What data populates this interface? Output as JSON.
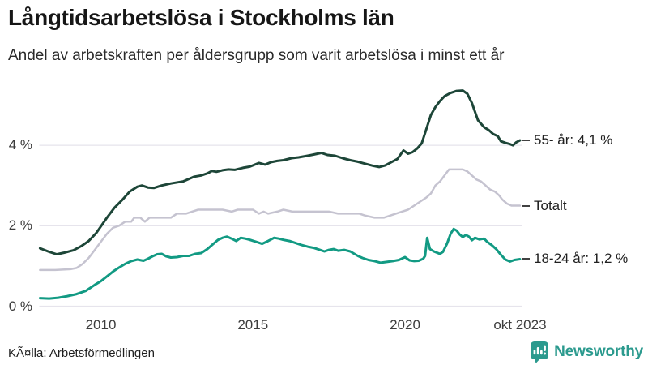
{
  "header": {
    "title": "Långtidsarbetslösa i Stockholms län",
    "subtitle": "Andel av arbetskraften per åldersgrupp som varit arbetslösa i minst ett år"
  },
  "footer": {
    "source": "KÃ¤lla: Arbetsförmedlingen",
    "brand": "Newsworthy"
  },
  "colors": {
    "series_55": "#1d4638",
    "series_total": "#c5c3d0",
    "series_18_24": "#129a83",
    "gridline": "#e6e4ec",
    "brand_teal": "#2b9a8e",
    "text_dark": "#161616"
  },
  "chart_data": {
    "type": "line",
    "title": "Långtidsarbetslösa i Stockholms län",
    "subtitle": "Andel av arbetskraften per åldersgrupp som varit arbetslösa i minst ett år",
    "unit": "%",
    "grid": true,
    "legend_position": "right-end-labels",
    "x_axis": {
      "range": [
        2008,
        2023.83
      ],
      "ticks": [
        {
          "label": "2010",
          "year": 2010
        },
        {
          "label": "2015",
          "year": 2015
        },
        {
          "label": "2020",
          "year": 2020
        },
        {
          "label": "okt 2023",
          "year": 2023.78
        }
      ]
    },
    "y_axis": {
      "range": [
        0,
        5.6
      ],
      "ticks": [
        {
          "label": "4 %",
          "value": 4
        },
        {
          "label": "2 %",
          "value": 2
        },
        {
          "label": "0 %",
          "value": 0
        }
      ]
    },
    "series": [
      {
        "name": "55- år",
        "label": "55- år: 4,1 %",
        "end_value_shown": "4,1 %",
        "color": "#1d4638",
        "points": [
          [
            2008.0,
            1.44
          ],
          [
            2008.3,
            1.35
          ],
          [
            2008.55,
            1.29
          ],
          [
            2008.8,
            1.33
          ],
          [
            2009.1,
            1.39
          ],
          [
            2009.35,
            1.49
          ],
          [
            2009.6,
            1.62
          ],
          [
            2009.85,
            1.82
          ],
          [
            2010.2,
            2.2
          ],
          [
            2010.45,
            2.45
          ],
          [
            2010.7,
            2.64
          ],
          [
            2010.95,
            2.85
          ],
          [
            2011.2,
            2.97
          ],
          [
            2011.35,
            3.0
          ],
          [
            2011.55,
            2.95
          ],
          [
            2011.75,
            2.94
          ],
          [
            2012.0,
            3.0
          ],
          [
            2012.3,
            3.05
          ],
          [
            2012.7,
            3.1
          ],
          [
            2013.07,
            3.22
          ],
          [
            2013.3,
            3.25
          ],
          [
            2013.5,
            3.3
          ],
          [
            2013.65,
            3.36
          ],
          [
            2013.8,
            3.34
          ],
          [
            2014.0,
            3.38
          ],
          [
            2014.2,
            3.4
          ],
          [
            2014.4,
            3.39
          ],
          [
            2014.67,
            3.44
          ],
          [
            2014.9,
            3.47
          ],
          [
            2015.2,
            3.56
          ],
          [
            2015.4,
            3.52
          ],
          [
            2015.6,
            3.58
          ],
          [
            2015.8,
            3.61
          ],
          [
            2016.0,
            3.63
          ],
          [
            2016.27,
            3.68
          ],
          [
            2016.5,
            3.7
          ],
          [
            2016.8,
            3.74
          ],
          [
            2017.0,
            3.77
          ],
          [
            2017.25,
            3.81
          ],
          [
            2017.45,
            3.76
          ],
          [
            2017.7,
            3.74
          ],
          [
            2017.95,
            3.68
          ],
          [
            2018.2,
            3.63
          ],
          [
            2018.45,
            3.59
          ],
          [
            2018.7,
            3.54
          ],
          [
            2018.95,
            3.49
          ],
          [
            2019.15,
            3.46
          ],
          [
            2019.35,
            3.5
          ],
          [
            2019.55,
            3.58
          ],
          [
            2019.75,
            3.66
          ],
          [
            2019.95,
            3.87
          ],
          [
            2020.1,
            3.79
          ],
          [
            2020.25,
            3.83
          ],
          [
            2020.4,
            3.92
          ],
          [
            2020.55,
            4.05
          ],
          [
            2020.7,
            4.4
          ],
          [
            2020.85,
            4.75
          ],
          [
            2021.0,
            4.95
          ],
          [
            2021.15,
            5.1
          ],
          [
            2021.3,
            5.22
          ],
          [
            2021.5,
            5.3
          ],
          [
            2021.7,
            5.35
          ],
          [
            2021.9,
            5.36
          ],
          [
            2022.05,
            5.28
          ],
          [
            2022.2,
            5.05
          ],
          [
            2022.4,
            4.62
          ],
          [
            2022.6,
            4.45
          ],
          [
            2022.75,
            4.38
          ],
          [
            2022.9,
            4.28
          ],
          [
            2023.05,
            4.23
          ],
          [
            2023.15,
            4.1
          ],
          [
            2023.3,
            4.06
          ],
          [
            2023.45,
            4.03
          ],
          [
            2023.55,
            4.0
          ],
          [
            2023.65,
            4.07
          ],
          [
            2023.78,
            4.12
          ]
        ]
      },
      {
        "name": "Totalt",
        "label": "Totalt",
        "color": "#c5c3d0",
        "points": [
          [
            2008.0,
            0.9
          ],
          [
            2008.5,
            0.9
          ],
          [
            2009.0,
            0.92
          ],
          [
            2009.2,
            0.95
          ],
          [
            2009.4,
            1.05
          ],
          [
            2009.6,
            1.2
          ],
          [
            2009.8,
            1.4
          ],
          [
            2010.0,
            1.6
          ],
          [
            2010.2,
            1.8
          ],
          [
            2010.4,
            1.95
          ],
          [
            2010.6,
            2.0
          ],
          [
            2010.8,
            2.1
          ],
          [
            2011.0,
            2.1
          ],
          [
            2011.1,
            2.2
          ],
          [
            2011.3,
            2.2
          ],
          [
            2011.45,
            2.1
          ],
          [
            2011.6,
            2.2
          ],
          [
            2011.8,
            2.2
          ],
          [
            2012.3,
            2.2
          ],
          [
            2012.5,
            2.3
          ],
          [
            2012.8,
            2.3
          ],
          [
            2013.0,
            2.35
          ],
          [
            2013.2,
            2.4
          ],
          [
            2013.5,
            2.4
          ],
          [
            2013.8,
            2.4
          ],
          [
            2014.0,
            2.4
          ],
          [
            2014.3,
            2.35
          ],
          [
            2014.5,
            2.4
          ],
          [
            2014.8,
            2.4
          ],
          [
            2015.0,
            2.4
          ],
          [
            2015.2,
            2.3
          ],
          [
            2015.35,
            2.35
          ],
          [
            2015.5,
            2.3
          ],
          [
            2015.8,
            2.35
          ],
          [
            2016.0,
            2.4
          ],
          [
            2016.3,
            2.35
          ],
          [
            2016.6,
            2.35
          ],
          [
            2017.0,
            2.35
          ],
          [
            2017.5,
            2.35
          ],
          [
            2017.8,
            2.3
          ],
          [
            2018.1,
            2.3
          ],
          [
            2018.5,
            2.3
          ],
          [
            2018.7,
            2.25
          ],
          [
            2019.0,
            2.2
          ],
          [
            2019.3,
            2.2
          ],
          [
            2019.5,
            2.25
          ],
          [
            2019.7,
            2.3
          ],
          [
            2019.9,
            2.35
          ],
          [
            2020.1,
            2.4
          ],
          [
            2020.3,
            2.5
          ],
          [
            2020.5,
            2.6
          ],
          [
            2020.7,
            2.7
          ],
          [
            2020.85,
            2.8
          ],
          [
            2021.0,
            3.0
          ],
          [
            2021.15,
            3.1
          ],
          [
            2021.3,
            3.25
          ],
          [
            2021.45,
            3.4
          ],
          [
            2021.9,
            3.4
          ],
          [
            2022.05,
            3.35
          ],
          [
            2022.2,
            3.25
          ],
          [
            2022.35,
            3.15
          ],
          [
            2022.5,
            3.1
          ],
          [
            2022.65,
            3.0
          ],
          [
            2022.8,
            2.9
          ],
          [
            2022.95,
            2.85
          ],
          [
            2023.1,
            2.75
          ],
          [
            2023.2,
            2.65
          ],
          [
            2023.35,
            2.55
          ],
          [
            2023.5,
            2.5
          ],
          [
            2023.78,
            2.5
          ]
        ]
      },
      {
        "name": "18-24 år",
        "label": "18-24 år: 1,2 %",
        "end_value_shown": "1,2 %",
        "color": "#129a83",
        "points": [
          [
            2008.0,
            0.2
          ],
          [
            2008.3,
            0.19
          ],
          [
            2008.6,
            0.21
          ],
          [
            2008.9,
            0.25
          ],
          [
            2009.2,
            0.3
          ],
          [
            2009.5,
            0.38
          ],
          [
            2009.8,
            0.53
          ],
          [
            2010.0,
            0.62
          ],
          [
            2010.2,
            0.74
          ],
          [
            2010.4,
            0.86
          ],
          [
            2010.6,
            0.96
          ],
          [
            2010.8,
            1.05
          ],
          [
            2011.0,
            1.12
          ],
          [
            2011.2,
            1.16
          ],
          [
            2011.4,
            1.13
          ],
          [
            2011.55,
            1.18
          ],
          [
            2011.7,
            1.24
          ],
          [
            2011.85,
            1.29
          ],
          [
            2012.0,
            1.3
          ],
          [
            2012.15,
            1.24
          ],
          [
            2012.3,
            1.21
          ],
          [
            2012.5,
            1.22
          ],
          [
            2012.7,
            1.25
          ],
          [
            2012.9,
            1.25
          ],
          [
            2013.1,
            1.3
          ],
          [
            2013.3,
            1.32
          ],
          [
            2013.5,
            1.42
          ],
          [
            2013.7,
            1.55
          ],
          [
            2013.85,
            1.65
          ],
          [
            2014.0,
            1.7
          ],
          [
            2014.15,
            1.73
          ],
          [
            2014.3,
            1.68
          ],
          [
            2014.45,
            1.62
          ],
          [
            2014.6,
            1.7
          ],
          [
            2014.75,
            1.68
          ],
          [
            2014.9,
            1.65
          ],
          [
            2015.1,
            1.6
          ],
          [
            2015.3,
            1.55
          ],
          [
            2015.5,
            1.62
          ],
          [
            2015.7,
            1.7
          ],
          [
            2015.85,
            1.68
          ],
          [
            2016.0,
            1.65
          ],
          [
            2016.2,
            1.62
          ],
          [
            2016.4,
            1.57
          ],
          [
            2016.6,
            1.52
          ],
          [
            2016.8,
            1.48
          ],
          [
            2017.0,
            1.45
          ],
          [
            2017.2,
            1.4
          ],
          [
            2017.35,
            1.36
          ],
          [
            2017.5,
            1.4
          ],
          [
            2017.65,
            1.42
          ],
          [
            2017.8,
            1.38
          ],
          [
            2018.0,
            1.4
          ],
          [
            2018.2,
            1.36
          ],
          [
            2018.45,
            1.25
          ],
          [
            2018.6,
            1.2
          ],
          [
            2018.8,
            1.15
          ],
          [
            2019.0,
            1.12
          ],
          [
            2019.2,
            1.08
          ],
          [
            2019.4,
            1.1
          ],
          [
            2019.6,
            1.12
          ],
          [
            2019.8,
            1.15
          ],
          [
            2020.0,
            1.22
          ],
          [
            2020.15,
            1.14
          ],
          [
            2020.3,
            1.12
          ],
          [
            2020.45,
            1.13
          ],
          [
            2020.6,
            1.18
          ],
          [
            2020.66,
            1.25
          ],
          [
            2020.73,
            1.7
          ],
          [
            2020.82,
            1.42
          ],
          [
            2020.95,
            1.36
          ],
          [
            2021.05,
            1.33
          ],
          [
            2021.15,
            1.3
          ],
          [
            2021.25,
            1.35
          ],
          [
            2021.38,
            1.55
          ],
          [
            2021.5,
            1.8
          ],
          [
            2021.6,
            1.92
          ],
          [
            2021.7,
            1.88
          ],
          [
            2021.8,
            1.78
          ],
          [
            2021.9,
            1.72
          ],
          [
            2022.0,
            1.77
          ],
          [
            2022.1,
            1.73
          ],
          [
            2022.2,
            1.64
          ],
          [
            2022.3,
            1.7
          ],
          [
            2022.45,
            1.66
          ],
          [
            2022.6,
            1.68
          ],
          [
            2022.7,
            1.6
          ],
          [
            2022.85,
            1.52
          ],
          [
            2023.0,
            1.42
          ],
          [
            2023.15,
            1.28
          ],
          [
            2023.3,
            1.16
          ],
          [
            2023.45,
            1.11
          ],
          [
            2023.6,
            1.15
          ],
          [
            2023.78,
            1.17
          ]
        ]
      }
    ]
  }
}
